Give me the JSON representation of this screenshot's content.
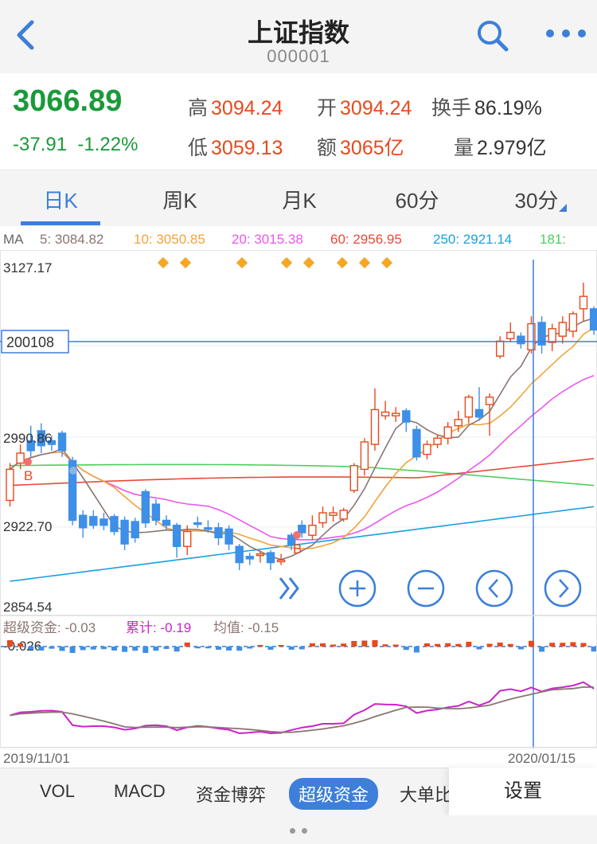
{
  "header": {
    "title": "上证指数",
    "code": "000001"
  },
  "quote": {
    "price": "3066.89",
    "change": "-37.91",
    "change_pct": "-1.22%",
    "high_label": "高",
    "high": "3094.24",
    "open_label": "开",
    "open": "3094.24",
    "turnover_label": "换手",
    "turnover": "86.19%",
    "low_label": "低",
    "low": "3059.13",
    "amount_label": "额",
    "amount": "3065亿",
    "volume_label": "量",
    "volume": "2.979亿"
  },
  "tabs": [
    "日K",
    "周K",
    "月K",
    "60分",
    "30分"
  ],
  "ma_legend": {
    "ma": "MA",
    "ma5": "5: 3084.82",
    "ma10": "10: 3050.85",
    "ma20": "20: 3015.38",
    "ma60": "60: 2956.95",
    "ma250": "250: 2921.14",
    "ma181": "181:"
  },
  "colors": {
    "up": "#e8491d",
    "down": "#3d8fe8",
    "ma5": "#8a7672",
    "ma10": "#f2a33a",
    "ma20": "#ee55ee",
    "ma60": "#e84a3a",
    "ma250": "#1aa0e0",
    "ma181": "#4ecf5a",
    "accent": "#3d7fd9",
    "price_down": "#1a9a3a"
  },
  "chart_data": {
    "type": "candlestick",
    "title": "",
    "xlabel": "",
    "ylabel": "",
    "ylim": [
      2854.54,
      3127.17
    ],
    "y_tick_labels": [
      "3127.17",
      "2990.86",
      "2922.70",
      "2854.54"
    ],
    "x_labels": [
      "2019/11/01",
      "2020/01/15"
    ],
    "crosshair_value": "200108",
    "candles": [
      {
        "o": 2940,
        "c": 2965,
        "h": 2970,
        "l": 2935
      },
      {
        "o": 2970,
        "c": 2978,
        "h": 2985,
        "l": 2965
      },
      {
        "o": 2988,
        "c": 2980,
        "h": 3000,
        "l": 2975
      },
      {
        "o": 2996,
        "c": 2984,
        "h": 3002,
        "l": 2978
      },
      {
        "o": 2988,
        "c": 2985,
        "h": 2992,
        "l": 2980
      },
      {
        "o": 2994,
        "c": 2980,
        "h": 2996,
        "l": 2975
      },
      {
        "o": 2972,
        "c": 2924,
        "h": 2975,
        "l": 2920
      },
      {
        "o": 2928,
        "c": 2918,
        "h": 2932,
        "l": 2910
      },
      {
        "o": 2927,
        "c": 2920,
        "h": 2932,
        "l": 2917
      },
      {
        "o": 2925,
        "c": 2920,
        "h": 2930,
        "l": 2916
      },
      {
        "o": 2927,
        "c": 2915,
        "h": 2929,
        "l": 2912
      },
      {
        "o": 2924,
        "c": 2905,
        "h": 2927,
        "l": 2900
      },
      {
        "o": 2923,
        "c": 2910,
        "h": 2926,
        "l": 2906
      },
      {
        "o": 2947,
        "c": 2922,
        "h": 2949,
        "l": 2918
      },
      {
        "o": 2937,
        "c": 2924,
        "h": 2941,
        "l": 2920
      },
      {
        "o": 2924,
        "c": 2920,
        "h": 2928,
        "l": 2916
      },
      {
        "o": 2920,
        "c": 2903,
        "h": 2922,
        "l": 2894
      },
      {
        "o": 2903,
        "c": 2915,
        "h": 2920,
        "l": 2896
      },
      {
        "o": 2922,
        "c": 2921,
        "h": 2927,
        "l": 2918
      },
      {
        "o": 2918,
        "c": 2917,
        "h": 2924,
        "l": 2914
      },
      {
        "o": 2918,
        "c": 2910,
        "h": 2922,
        "l": 2904
      },
      {
        "o": 2917,
        "c": 2905,
        "h": 2920,
        "l": 2900
      },
      {
        "o": 2903,
        "c": 2890,
        "h": 2905,
        "l": 2884
      },
      {
        "o": 2895,
        "c": 2893,
        "h": 2898,
        "l": 2888
      },
      {
        "o": 2897,
        "c": 2897,
        "h": 2899,
        "l": 2890
      },
      {
        "o": 2898,
        "c": 2890,
        "h": 2900,
        "l": 2884
      },
      {
        "o": 2892,
        "c": 2892,
        "h": 2897,
        "l": 2888
      },
      {
        "o": 2912,
        "c": 2904,
        "h": 2914,
        "l": 2900
      },
      {
        "o": 2920,
        "c": 2914,
        "h": 2924,
        "l": 2910
      },
      {
        "o": 2912,
        "c": 2920,
        "h": 2928,
        "l": 2908
      },
      {
        "o": 2922,
        "c": 2930,
        "h": 2935,
        "l": 2918
      },
      {
        "o": 2928,
        "c": 2930,
        "h": 2935,
        "l": 2923
      },
      {
        "o": 2925,
        "c": 2932,
        "h": 2934,
        "l": 2923
      },
      {
        "o": 2948,
        "c": 2968,
        "h": 2970,
        "l": 2946
      },
      {
        "o": 2965,
        "c": 2987,
        "h": 2990,
        "l": 2960
      },
      {
        "o": 2985,
        "c": 3013,
        "h": 3030,
        "l": 2980
      },
      {
        "o": 3008,
        "c": 3011,
        "h": 3020,
        "l": 3005
      },
      {
        "o": 3008,
        "c": 3010,
        "h": 3015,
        "l": 3003
      },
      {
        "o": 3012,
        "c": 3003,
        "h": 3014,
        "l": 2995
      },
      {
        "o": 2997,
        "c": 2975,
        "h": 3000,
        "l": 2972
      },
      {
        "o": 2977,
        "c": 2985,
        "h": 2988,
        "l": 2973
      },
      {
        "o": 2985,
        "c": 2990,
        "h": 2993,
        "l": 2982
      },
      {
        "o": 2990,
        "c": 2999,
        "h": 3003,
        "l": 2985
      },
      {
        "o": 3000,
        "c": 3005,
        "h": 3012,
        "l": 2995
      },
      {
        "o": 3007,
        "c": 3023,
        "h": 3025,
        "l": 3002
      },
      {
        "o": 3013,
        "c": 3007,
        "h": 3031,
        "l": 3004
      },
      {
        "o": 3017,
        "c": 3023,
        "h": 3026,
        "l": 2992
      },
      {
        "o": 3056,
        "c": 3068,
        "h": 3072,
        "l": 3054
      },
      {
        "o": 3070,
        "c": 3075,
        "h": 3083,
        "l": 3067
      },
      {
        "o": 3072,
        "c": 3066,
        "h": 3075,
        "l": 3062
      },
      {
        "o": 3061,
        "c": 3082,
        "h": 3088,
        "l": 3058
      },
      {
        "o": 3083,
        "c": 3065,
        "h": 3088,
        "l": 3058
      },
      {
        "o": 3067,
        "c": 3078,
        "h": 3082,
        "l": 3060
      },
      {
        "o": 3072,
        "c": 3083,
        "h": 3088,
        "l": 3066
      },
      {
        "o": 3076,
        "c": 3090,
        "h": 3092,
        "l": 3071
      },
      {
        "o": 3094,
        "c": 3104,
        "h": 3115,
        "l": 3084
      },
      {
        "o": 3094,
        "c": 3077,
        "h": 3096,
        "l": 3073
      }
    ],
    "annotations": [
      "B",
      "B"
    ]
  },
  "sub_panel": {
    "label1": "超级资金: -0.03",
    "label2": "累计: -0.19",
    "label3": "均值: -0.15",
    "zero_label": "-0.026"
  },
  "bottom_tabs": {
    "items": [
      "VOL",
      "MACD",
      "资金博弈",
      "超级资金",
      "大单比"
    ],
    "active": "超级资金",
    "settings": "设置"
  },
  "controls": {
    "fast_forward": "fast-forward-icon",
    "zoom_in": "plus-icon",
    "zoom_out": "minus-icon",
    "prev": "chevron-left-icon",
    "next": "chevron-right-icon"
  }
}
